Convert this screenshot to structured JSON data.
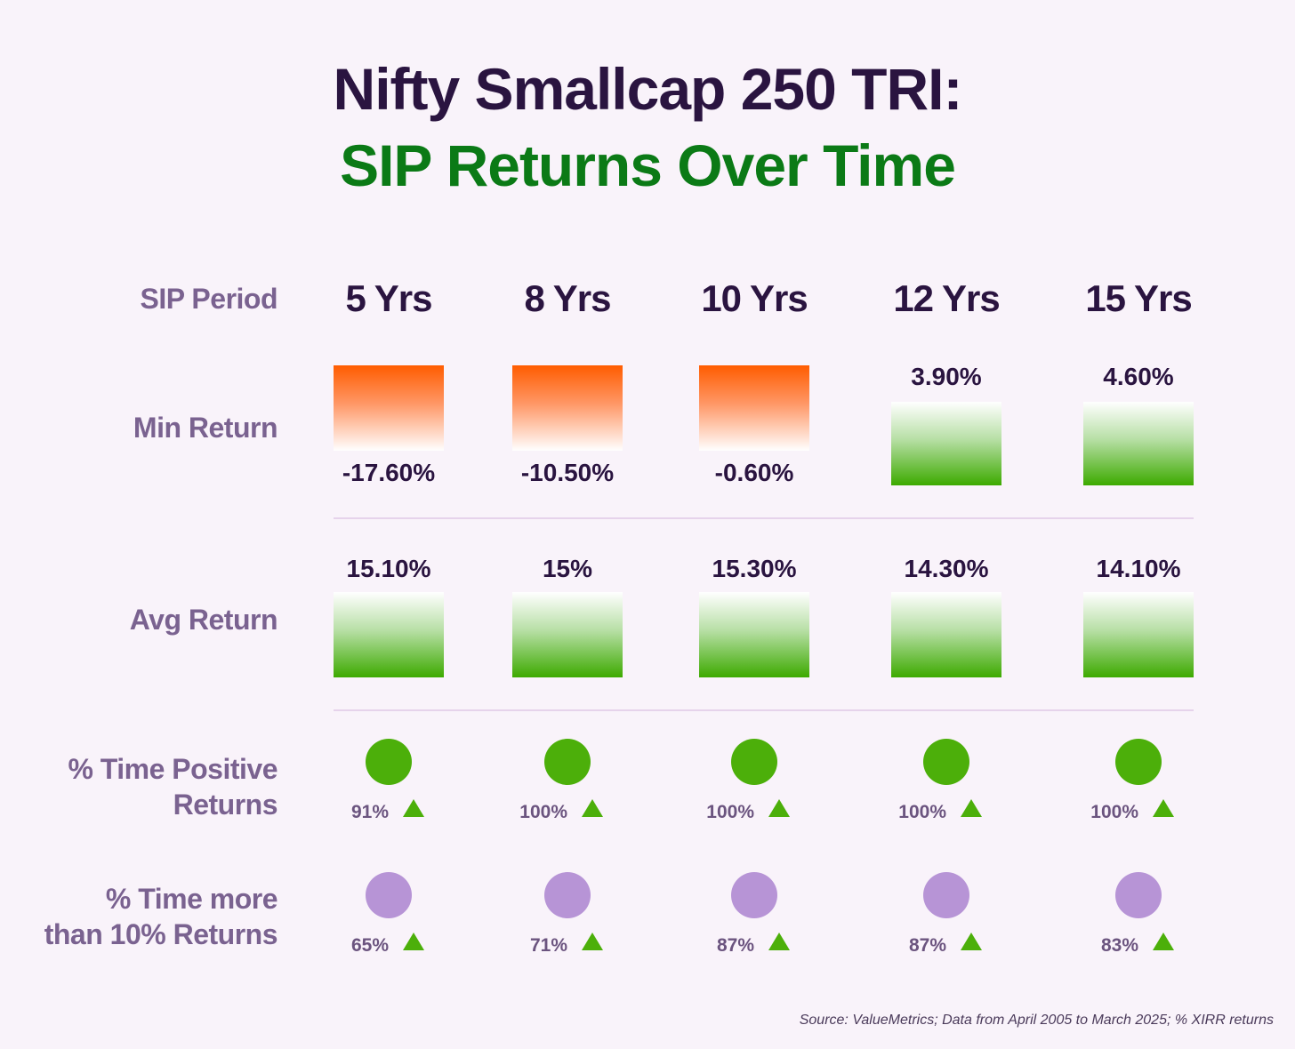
{
  "title": "Nifty Smallcap 250 TRI:",
  "subtitle": "SIP Returns Over Time",
  "row_labels": {
    "period": "SIP Period",
    "min": "Min Return",
    "avg": "Avg Return",
    "positive_line1": "% Time Positive",
    "positive_line2": "Returns",
    "above10_line1": "% Time more",
    "above10_line2": "than 10% Returns"
  },
  "colors": {
    "negative": "#ff5c00",
    "positive": "#3daa00",
    "positive_dot": "#4caf0a",
    "above10_dot": "#b794d6",
    "title": "#2a1440",
    "subtitle": "#0b7a16"
  },
  "source": "Source: ValueMetrics; Data from April 2005 to March 2025; % XIRR returns",
  "chart_data": {
    "type": "table",
    "columns": [
      "5 Yrs",
      "8 Yrs",
      "10 Yrs",
      "12 Yrs",
      "15 Yrs"
    ],
    "min_return": [
      -17.6,
      -10.5,
      -0.6,
      3.9,
      4.6
    ],
    "min_return_labels": [
      "-17.60%",
      "-10.50%",
      "-0.60%",
      "3.90%",
      "4.60%"
    ],
    "avg_return": [
      15.1,
      15,
      15.3,
      14.3,
      14.1
    ],
    "avg_return_labels": [
      "15.10%",
      "15%",
      "15.30%",
      "14.30%",
      "14.10%"
    ],
    "pct_time_positive": [
      91,
      100,
      100,
      100,
      100
    ],
    "pct_time_positive_labels": [
      "91%",
      "100%",
      "100%",
      "100%",
      "100%"
    ],
    "pct_time_above_10": [
      65,
      71,
      87,
      87,
      83
    ],
    "pct_time_above_10_labels": [
      "65%",
      "71%",
      "87%",
      "87%",
      "83%"
    ]
  }
}
